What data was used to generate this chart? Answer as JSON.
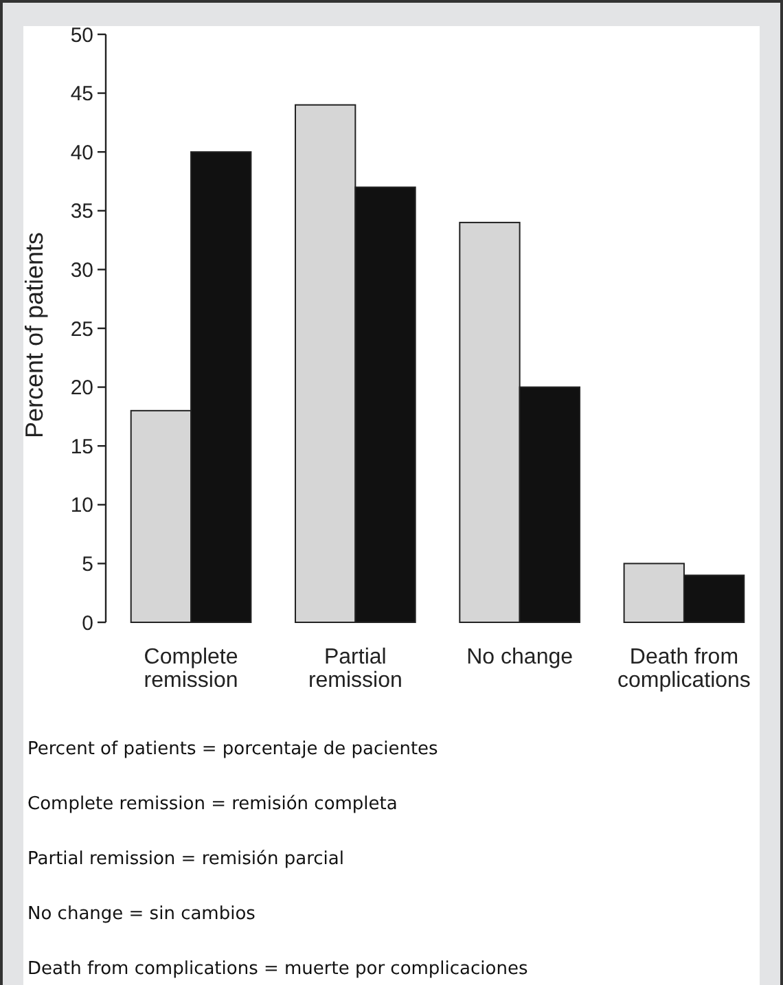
{
  "chart_data": {
    "type": "bar",
    "ylabel": "Percent of patients",
    "categories": [
      "Complete remission",
      "Partial remission",
      "No change",
      "Death from complications"
    ],
    "series": [
      {
        "color": "#d6d6d6",
        "values": [
          18,
          44,
          34,
          5
        ]
      },
      {
        "color": "#111111",
        "values": [
          40,
          37,
          20,
          4
        ]
      }
    ],
    "ylim": [
      0,
      50
    ],
    "yticks": [
      0,
      5,
      10,
      15,
      20,
      25,
      30,
      35,
      40,
      45,
      50
    ],
    "annotations": [
      "Percent of patients = porcentaje de pacientes",
      "Complete remission = remisión completa",
      "Partial remission = remisión parcial",
      "No change = sin cambios",
      "Death from complications = muerte por complicaciones"
    ]
  }
}
